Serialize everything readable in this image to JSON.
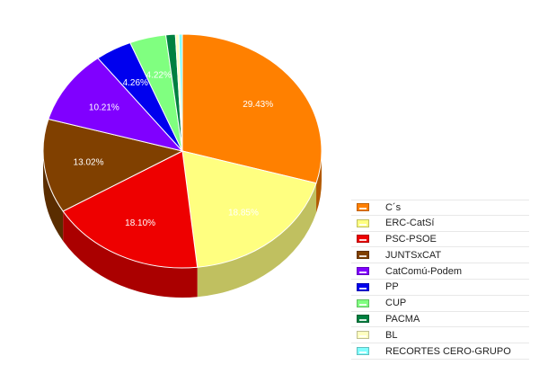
{
  "chart_data": {
    "type": "pie",
    "title": "",
    "series": [
      {
        "name": "C´s",
        "value": 29.43,
        "label": "29.43%",
        "color": "#ff8000",
        "side": "#b35a00"
      },
      {
        "name": "ERC-CatSí",
        "value": 18.85,
        "label": "18.85%",
        "color": "#ffff80",
        "side": "#c0c060"
      },
      {
        "name": "PSC-PSOE",
        "value": 18.1,
        "label": "18.10%",
        "color": "#ee0000",
        "side": "#aa0000"
      },
      {
        "name": "JUNTSxCAT",
        "value": 13.02,
        "label": "13.02%",
        "color": "#804000",
        "side": "#5a2d00"
      },
      {
        "name": "CatComú-Podem",
        "value": 10.21,
        "label": "10.21%",
        "color": "#8000ff",
        "side": "#5a00b3"
      },
      {
        "name": "PP",
        "value": 4.26,
        "label": "4.26%",
        "color": "#0000ee",
        "side": "#0000a8"
      },
      {
        "name": "CUP",
        "value": 4.22,
        "label": "4.22%",
        "color": "#80ff80",
        "side": "#5ab35a"
      },
      {
        "name": "PACMA",
        "value": 1.1,
        "label": "",
        "color": "#008040",
        "side": "#005a2d"
      },
      {
        "name": "BL",
        "value": 0.4,
        "label": "",
        "color": "#ffffc0",
        "side": "#d0d090"
      },
      {
        "name": "RECORTES CERO-GRUPO",
        "value": 0.4,
        "label": "",
        "color": "#80ffff",
        "side": "#5ab3b3"
      }
    ],
    "legend_position": "bottom-right",
    "style": "3d-pie"
  }
}
